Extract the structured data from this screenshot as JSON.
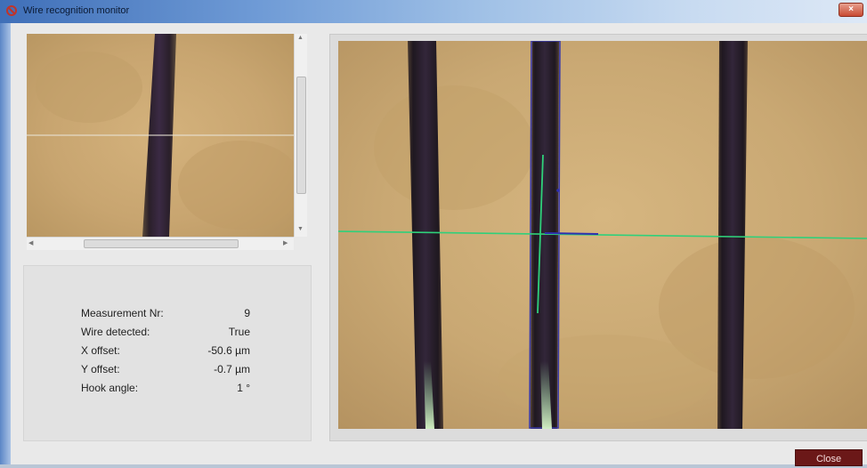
{
  "window": {
    "title": "Wire recognition monitor",
    "close_glyph": "×",
    "icon": "wire-monitor-app-icon"
  },
  "measurement": {
    "rows": [
      {
        "label": "Measurement Nr:",
        "value": "9"
      },
      {
        "label": "Wire detected:",
        "value": "True"
      },
      {
        "label": "X offset:",
        "value": "-50.6 µm"
      },
      {
        "label": "Y offset:",
        "value": "-0.7 µm"
      },
      {
        "label": "Hook angle:",
        "value": "1 °"
      }
    ]
  },
  "buttons": {
    "close_label": "Close"
  },
  "scroll": {
    "up": "▲",
    "down": "▼",
    "left": "◀",
    "right": "▶"
  },
  "colors": {
    "title_bar_start": "#3f6fb8",
    "camera_background": "#c9a874",
    "wire": "#2a1f2c",
    "detection_line_green": "#2fd07a",
    "detection_outline_blue": "#3a3aa8",
    "close_button": "#6b1818"
  }
}
